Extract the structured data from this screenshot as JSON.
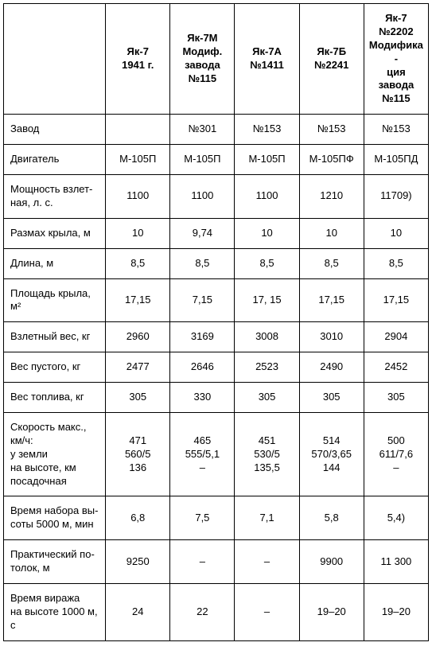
{
  "table": {
    "background_color": "#ffffff",
    "border_color": "#000000",
    "text_color": "#000000",
    "font_family": "Arial",
    "header_fontsize": 13,
    "body_fontsize": 13,
    "column_widths_pct": [
      24,
      15.2,
      15.2,
      15.2,
      15.2,
      15.2
    ],
    "columns": [
      "",
      "Як-7\n1941 г.",
      "Як-7М\nМодиф.\nзавода\n№115",
      "Як-7А\n№1411",
      "Як-7Б\n№2241",
      "Як-7\n№2202\nМодифика-\nция завода\n№115"
    ],
    "rows": [
      {
        "label": "Завод",
        "values": [
          "",
          "№301",
          "№153",
          "№153",
          "№153"
        ]
      },
      {
        "label": "Двигатель",
        "values": [
          "М-105П",
          "М-105П",
          "М-105П",
          "М-105ПФ",
          "М-105ПД"
        ]
      },
      {
        "label": "Мощность взлет-\nная, л. с.",
        "values": [
          "1100",
          "1100",
          "1100",
          "1210",
          "11709)"
        ]
      },
      {
        "label": "Размах крыла, м",
        "values": [
          "10",
          "9,74",
          "10",
          "10",
          "10"
        ]
      },
      {
        "label": "Длина, м",
        "values": [
          "8,5",
          "8,5",
          "8,5",
          "8,5",
          "8,5"
        ]
      },
      {
        "label": "Площадь крыла, м²",
        "values": [
          "17,15",
          "7,15",
          "17, 15",
          "17,15",
          "17,15"
        ]
      },
      {
        "label": "Взлетный вес, кг",
        "values": [
          "2960",
          "3169",
          "3008",
          "3010",
          "2904"
        ]
      },
      {
        "label": "Вес пустого, кг",
        "values": [
          "2477",
          "2646",
          "2523",
          "2490",
          "2452"
        ]
      },
      {
        "label": "Вес топлива, кг",
        "values": [
          "305",
          "330",
          "305",
          "305",
          "305"
        ]
      },
      {
        "label": "Скорость макс.,\nкм/ч:\nу земли\nна высоте, км\nпосадочная",
        "values": [
          "471\n560/5\n136",
          "465\n555/5,1\n–",
          "451\n530/5\n135,5",
          "514\n570/3,65\n144",
          "500\n611/7,6\n–"
        ]
      },
      {
        "label": "Время набора вы-\nсоты 5000 м, мин",
        "values": [
          "6,8",
          "7,5",
          "7,1",
          "5,8",
          "5,4)"
        ]
      },
      {
        "label": "Практический по-\nтолок, м",
        "values": [
          "9250",
          "–",
          "–",
          "9900",
          "11 300"
        ]
      },
      {
        "label": "Время виража\nна высоте 1000 м,\nс",
        "values": [
          "24",
          "22",
          "–",
          "19–20",
          "19–20"
        ]
      }
    ]
  }
}
